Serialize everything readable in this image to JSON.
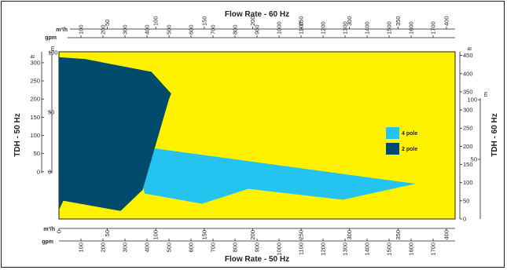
{
  "colors": {
    "plot_background": "#fff200",
    "four_pole": "#25c4f0",
    "two_pole": "#004b6b",
    "ink": "#231f20"
  },
  "chart_data": {
    "type": "area",
    "top_title": "Flow Rate - 60 Hz",
    "bottom_title": "Flow Rate - 50 Hz",
    "left_title": "TDH - 50 Hz",
    "right_title": "TDH - 60 Hz",
    "units": {
      "gpm": "gpm",
      "m3h": "m³/h",
      "ft": "ft",
      "m": "m"
    },
    "axes": {
      "top_gpm": {
        "range": [
          0,
          1800
        ],
        "ticks": [
          "100",
          "200",
          "300",
          "400",
          "500",
          "600",
          "700",
          "800",
          "900",
          "1000",
          "1100",
          "1200",
          "1300",
          "1400",
          "1500",
          "1600",
          "1700"
        ]
      },
      "top_m3h": {
        "range": [
          0,
          409
        ],
        "ticks": [
          "50",
          "100",
          "150",
          "200",
          "250",
          "300",
          "350",
          "400"
        ]
      },
      "bottom_gpm": {
        "range": [
          0,
          1800
        ],
        "ticks": [
          "100",
          "200",
          "300",
          "400",
          "500",
          "600",
          "700",
          "800",
          "900",
          "1000",
          "1100",
          "1200",
          "1300",
          "1400",
          "1500",
          "1600",
          "1700"
        ]
      },
      "bottom_m3h": {
        "range": [
          0,
          409
        ],
        "ticks": [
          "0",
          "50",
          "100",
          "150",
          "200",
          "250",
          "300",
          "350",
          "400"
        ]
      },
      "left_ft": {
        "range": [
          -130,
          330
        ],
        "ticks": [
          "0",
          "50",
          "100",
          "150",
          "200",
          "250",
          "300"
        ]
      },
      "left_m": {
        "range": [
          -39.6,
          100.6
        ],
        "ticks": [
          "0",
          "50",
          "100"
        ]
      },
      "right_ft": {
        "range": [
          0,
          460
        ],
        "ticks": [
          "0",
          "50",
          "100",
          "150",
          "200",
          "250",
          "300",
          "350",
          "400",
          "450"
        ]
      },
      "right_m": {
        "range": [
          0,
          140.2
        ],
        "ticks": [
          "50",
          "100"
        ]
      }
    },
    "legend": {
      "position": "right",
      "items": [
        "4 pole",
        "2 pole"
      ]
    },
    "series": [
      {
        "name": "4 pole",
        "x_gpm_60hz": [
          425,
          1620,
          1290,
          860,
          650,
          390,
          380,
          425
        ],
        "y_ft_60hz": [
          195,
          97,
          53,
          83,
          42,
          70,
          93,
          195
        ]
      },
      {
        "name": "2 pole",
        "x_gpm_60hz": [
          0,
          120,
          420,
          510,
          500,
          380,
          280,
          20,
          0,
          0
        ],
        "y_ft_60hz": [
          445,
          440,
          405,
          345,
          330,
          80,
          22,
          50,
          25,
          445
        ]
      }
    ]
  }
}
